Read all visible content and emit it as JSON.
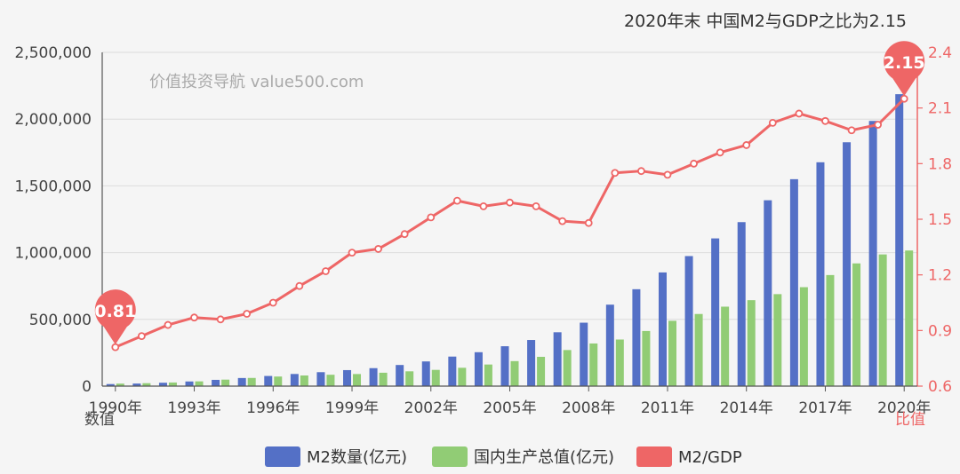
{
  "chart_data": {
    "type": "bar",
    "title": "2020年末 中国M2与GDP之比为2.15",
    "watermark": "价值投资导航 value500.com",
    "y_left_label": "数值",
    "y_right_label": "比值",
    "y_left_ticks": [
      "0",
      "500,000",
      "1,000,000",
      "1,500,000",
      "2,000,000",
      "2,500,000"
    ],
    "y_right_ticks": [
      "0.6",
      "0.9",
      "1.2",
      "1.5",
      "1.8",
      "2.1",
      "2.4"
    ],
    "y_left_range": [
      0,
      2500000
    ],
    "y_right_range": [
      0.6,
      2.4
    ],
    "x_tick_labels": [
      "1990年",
      "1993年",
      "1996年",
      "1999年",
      "2002年",
      "2005年",
      "2008年",
      "2011年",
      "2014年",
      "2017年",
      "2020年"
    ],
    "categories": [
      1990,
      1991,
      1992,
      1993,
      1994,
      1995,
      1996,
      1997,
      1998,
      1999,
      2000,
      2001,
      2002,
      2003,
      2004,
      2005,
      2006,
      2007,
      2008,
      2009,
      2010,
      2011,
      2012,
      2013,
      2014,
      2015,
      2016,
      2017,
      2018,
      2019,
      2020
    ],
    "series": [
      {
        "name": "M2数量(亿元)",
        "type": "bar",
        "axis": "left",
        "color": "#5470c6",
        "values": [
          15293,
          19350,
          25402,
          34880,
          46924,
          60751,
          76095,
          90995,
          104499,
          119898,
          134610,
          158302,
          185007,
          221223,
          254107,
          298756,
          345578,
          403442,
          475167,
          610225,
          725852,
          851591,
          974149,
          1106525,
          1228375,
          1392278,
          1550067,
          1676769,
          1826744,
          1986489,
          2186795
        ]
      },
      {
        "name": "国内生产总值(亿元)",
        "type": "bar",
        "axis": "left",
        "color": "#91cc75",
        "values": [
          18873,
          22006,
          27195,
          35673,
          48638,
          61340,
          71814,
          79715,
          85196,
          90564,
          100280,
          110863,
          121717,
          137422,
          161840,
          187319,
          219439,
          270232,
          319516,
          349081,
          413030,
          489301,
          540367,
          595244,
          643974,
          689052,
          741140,
          832036,
          919281,
          986515,
          1015986
        ]
      },
      {
        "name": "M2/GDP",
        "type": "line",
        "axis": "right",
        "color": "#ee6666",
        "values": [
          0.81,
          0.87,
          0.93,
          0.97,
          0.96,
          0.99,
          1.05,
          1.14,
          1.22,
          1.32,
          1.34,
          1.42,
          1.51,
          1.6,
          1.57,
          1.59,
          1.57,
          1.49,
          1.48,
          1.75,
          1.76,
          1.74,
          1.8,
          1.86,
          1.9,
          2.02,
          2.07,
          2.03,
          1.98,
          2.01,
          2.15
        ]
      }
    ],
    "markers": [
      {
        "label": "0.81",
        "index": 0
      },
      {
        "label": "2.15",
        "index": 30
      }
    ],
    "grid": true,
    "legend_position": "bottom"
  }
}
